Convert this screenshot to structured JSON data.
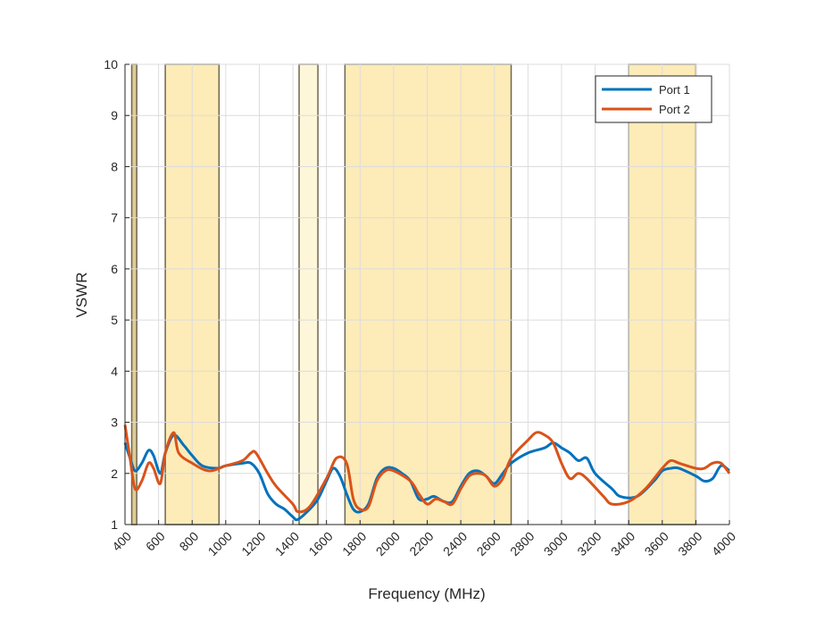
{
  "chart_data": {
    "type": "line",
    "title": "",
    "xlabel": "Frequency (MHz)",
    "ylabel": "VSWR",
    "xlim": [
      400,
      4000
    ],
    "ylim": [
      1,
      10
    ],
    "xticks": [
      400,
      600,
      800,
      1000,
      1200,
      1400,
      1600,
      1800,
      2000,
      2200,
      2400,
      2600,
      2800,
      3000,
      3200,
      3400,
      3600,
      3800,
      4000
    ],
    "yticks": [
      1,
      2,
      3,
      4,
      5,
      6,
      7,
      8,
      9,
      10
    ],
    "grid": true,
    "legend_position": "top-right",
    "bands": [
      {
        "from": 440,
        "to": 470,
        "color": "#d9c48a"
      },
      {
        "from": 640,
        "to": 960,
        "color": "#fde9b0"
      },
      {
        "from": 1437,
        "to": 1549,
        "color": "#fef5d4"
      },
      {
        "from": 1710,
        "to": 2700,
        "color": "#fde9b0"
      },
      {
        "from": 3400,
        "to": 3800,
        "color": "#fde9b0"
      }
    ],
    "series": [
      {
        "name": "Port 1",
        "color": "#0072bd",
        "x": [
          400,
          430,
          460,
          500,
          540,
          570,
          610,
          640,
          690,
          750,
          800,
          860,
          950,
          1000,
          1100,
          1150,
          1200,
          1250,
          1300,
          1350,
          1400,
          1430,
          1500,
          1550,
          1600,
          1640,
          1680,
          1720,
          1760,
          1800,
          1850,
          1900,
          1950,
          2000,
          2050,
          2100,
          2150,
          2200,
          2240,
          2300,
          2350,
          2400,
          2450,
          2500,
          2550,
          2600,
          2650,
          2700,
          2800,
          2900,
          2950,
          3000,
          3050,
          3100,
          3150,
          3200,
          3300,
          3350,
          3450,
          3550,
          3600,
          3650,
          3700,
          3800,
          3850,
          3900,
          3950,
          4000
        ],
        "y": [
          2.6,
          2.3,
          2.05,
          2.2,
          2.45,
          2.35,
          2.0,
          2.4,
          2.75,
          2.55,
          2.35,
          2.15,
          2.1,
          2.15,
          2.2,
          2.2,
          2.0,
          1.6,
          1.4,
          1.3,
          1.15,
          1.1,
          1.3,
          1.5,
          1.85,
          2.1,
          1.95,
          1.6,
          1.3,
          1.25,
          1.4,
          1.9,
          2.1,
          2.1,
          2.0,
          1.85,
          1.5,
          1.5,
          1.55,
          1.45,
          1.45,
          1.75,
          2.0,
          2.05,
          1.95,
          1.8,
          2.0,
          2.2,
          2.4,
          2.5,
          2.6,
          2.5,
          2.4,
          2.25,
          2.3,
          2.0,
          1.7,
          1.55,
          1.55,
          1.85,
          2.05,
          2.1,
          2.1,
          1.95,
          1.85,
          1.9,
          2.15,
          2.05
        ]
      },
      {
        "name": "Port 2",
        "color": "#d95319",
        "x": [
          400,
          430,
          460,
          500,
          540,
          570,
          610,
          640,
          690,
          720,
          800,
          900,
          1000,
          1100,
          1150,
          1180,
          1250,
          1300,
          1400,
          1430,
          1500,
          1600,
          1660,
          1720,
          1760,
          1800,
          1850,
          1900,
          1950,
          2000,
          2100,
          2150,
          2200,
          2250,
          2300,
          2350,
          2400,
          2450,
          2500,
          2550,
          2600,
          2650,
          2700,
          2800,
          2850,
          2900,
          2950,
          3000,
          3050,
          3100,
          3150,
          3250,
          3300,
          3400,
          3500,
          3600,
          3650,
          3700,
          3800,
          3850,
          3900,
          3950,
          4000
        ],
        "y": [
          2.95,
          2.3,
          1.7,
          1.85,
          2.2,
          2.1,
          1.8,
          2.4,
          2.8,
          2.4,
          2.2,
          2.05,
          2.15,
          2.25,
          2.4,
          2.4,
          2.0,
          1.75,
          1.4,
          1.25,
          1.35,
          1.9,
          2.3,
          2.2,
          1.5,
          1.3,
          1.35,
          1.85,
          2.05,
          2.05,
          1.85,
          1.6,
          1.4,
          1.5,
          1.45,
          1.4,
          1.7,
          1.95,
          2.0,
          1.95,
          1.75,
          1.9,
          2.3,
          2.65,
          2.8,
          2.75,
          2.6,
          2.2,
          1.9,
          2.0,
          1.9,
          1.55,
          1.4,
          1.45,
          1.7,
          2.1,
          2.25,
          2.2,
          2.1,
          2.1,
          2.2,
          2.2,
          2.0
        ]
      }
    ]
  }
}
